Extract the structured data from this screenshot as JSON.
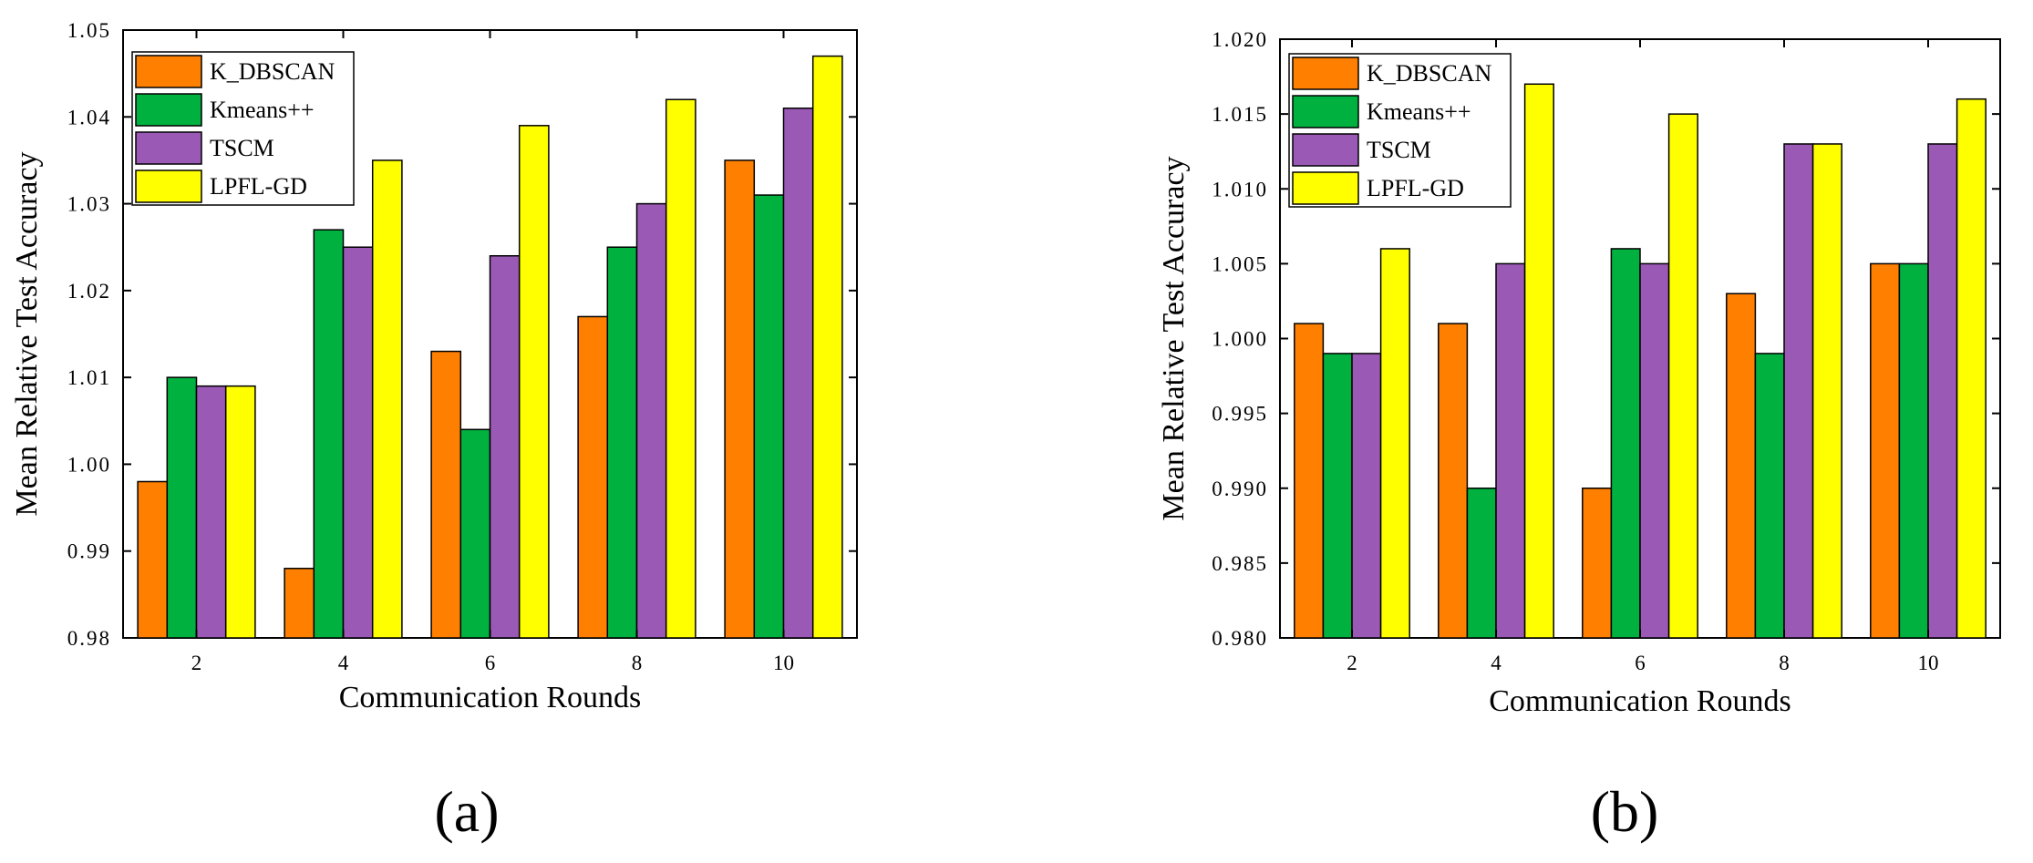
{
  "colors": {
    "K_DBSCAN": "#ff8000",
    "Kmeans++": "#00b140",
    "TSCM": "#9b59b6",
    "LPFL-GD": "#ffff00",
    "axis": "#000000",
    "background": "#ffffff"
  },
  "chart_data": [
    {
      "type": "bar",
      "panel_label": "(a)",
      "xlabel": "Communication Rounds",
      "ylabel": "Mean Relative Test Accuracy",
      "ylim": [
        0.98,
        1.05
      ],
      "yticks": [
        "0.98",
        "0.99",
        "1.00",
        "1.01",
        "1.02",
        "1.03",
        "1.04",
        "1.05"
      ],
      "categories": [
        "2",
        "4",
        "6",
        "8",
        "10"
      ],
      "legend_position": "top-left",
      "grid": false,
      "series": [
        {
          "name": "K_DBSCAN",
          "values": [
            0.998,
            0.988,
            1.013,
            1.017,
            1.035
          ]
        },
        {
          "name": "Kmeans++",
          "values": [
            1.01,
            1.027,
            1.004,
            1.025,
            1.031
          ]
        },
        {
          "name": "TSCM",
          "values": [
            1.009,
            1.025,
            1.024,
            1.03,
            1.041
          ]
        },
        {
          "name": "LPFL-GD",
          "values": [
            1.009,
            1.035,
            1.039,
            1.042,
            1.047
          ]
        }
      ]
    },
    {
      "type": "bar",
      "panel_label": "(b)",
      "xlabel": "Communication Rounds",
      "ylabel": "Mean Relative Test Accuracy",
      "ylim": [
        0.98,
        1.02
      ],
      "yticks": [
        "0.980",
        "0.985",
        "0.990",
        "0.995",
        "1.000",
        "1.005",
        "1.010",
        "1.015",
        "1.020"
      ],
      "categories": [
        "2",
        "4",
        "6",
        "8",
        "10"
      ],
      "legend_position": "top-left",
      "grid": false,
      "series": [
        {
          "name": "K_DBSCAN",
          "values": [
            1.001,
            1.001,
            0.99,
            1.003,
            1.005
          ]
        },
        {
          "name": "Kmeans++",
          "values": [
            0.999,
            0.99,
            1.006,
            0.999,
            1.005
          ]
        },
        {
          "name": "TSCM",
          "values": [
            0.999,
            1.005,
            1.005,
            1.013,
            1.013
          ]
        },
        {
          "name": "LPFL-GD",
          "values": [
            1.006,
            1.017,
            1.015,
            1.013,
            1.016
          ]
        }
      ]
    }
  ]
}
